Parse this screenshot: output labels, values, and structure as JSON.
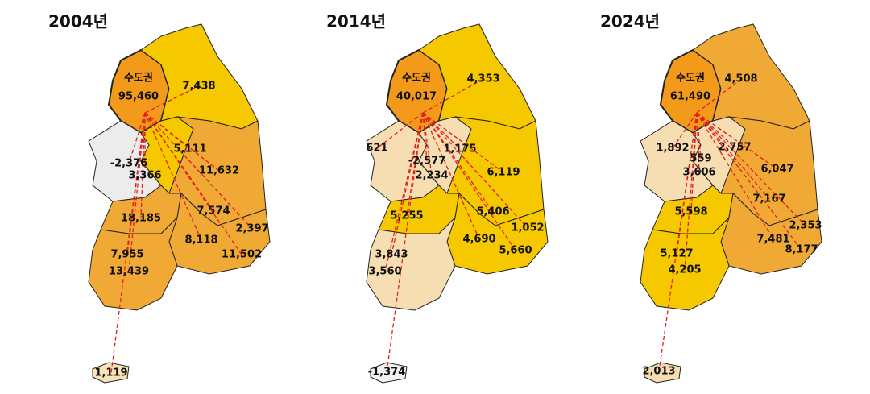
{
  "maps": [
    {
      "title": "2004년",
      "regions": [
        {
          "label": "수도권"
        },
        {
          "label": "95,460"
        },
        {
          "label": "7,438"
        },
        {
          "label": "-2,376"
        },
        {
          "label": "5,111"
        },
        {
          "label": "3,366"
        },
        {
          "label": "11,632"
        },
        {
          "label": "7,574"
        },
        {
          "label": "18,185"
        },
        {
          "label": "8,118"
        },
        {
          "label": "2,397"
        },
        {
          "label": "11,502"
        },
        {
          "label": "7,955"
        },
        {
          "label": "13,439"
        },
        {
          "label": "1,119"
        }
      ]
    },
    {
      "title": "2014년",
      "regions": [
        {
          "label": "수도권"
        },
        {
          "label": "40,017"
        },
        {
          "label": "4,353"
        },
        {
          "label": "621"
        },
        {
          "label": "1,175"
        },
        {
          "label": "-2,577"
        },
        {
          "label": "2,234"
        },
        {
          "label": "6,119"
        },
        {
          "label": "5,406"
        },
        {
          "label": "5,255"
        },
        {
          "label": "1,052"
        },
        {
          "label": "4,690"
        },
        {
          "label": "5,660"
        },
        {
          "label": "3,843"
        },
        {
          "label": "3,560"
        },
        {
          "label": "-1,374"
        }
      ]
    },
    {
      "title": "2024년",
      "regions": [
        {
          "label": "수도권"
        },
        {
          "label": "61,490"
        },
        {
          "label": "4,508"
        },
        {
          "label": "1,892"
        },
        {
          "label": "2,757"
        },
        {
          "label": "559"
        },
        {
          "label": "3,606"
        },
        {
          "label": "6,047"
        },
        {
          "label": "7,167"
        },
        {
          "label": "5,598"
        },
        {
          "label": "2,353"
        },
        {
          "label": "7,481"
        },
        {
          "label": "8,177"
        },
        {
          "label": "5,127"
        },
        {
          "label": "4,205"
        },
        {
          "label": "2,013"
        }
      ]
    }
  ]
}
